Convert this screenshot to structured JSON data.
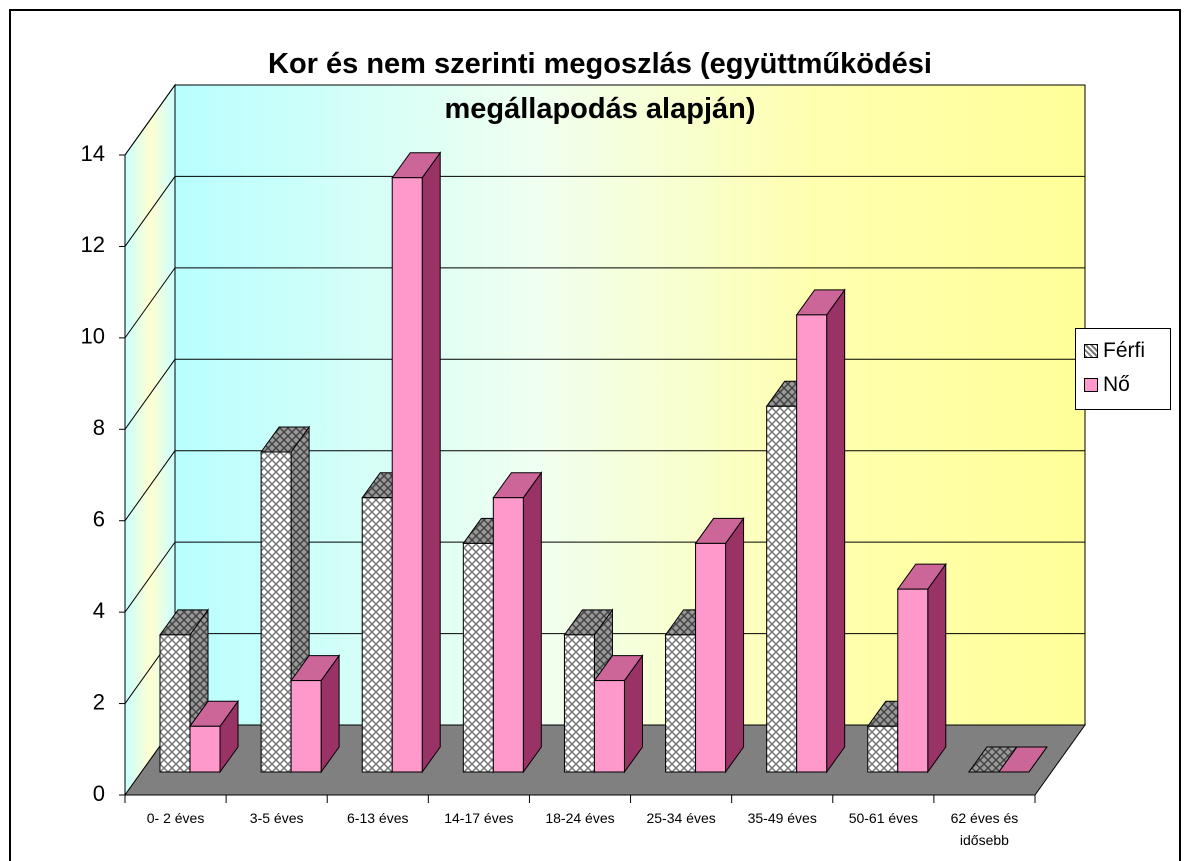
{
  "chart_data": {
    "type": "bar3d",
    "title": "Kor és nem szerinti megoszlás (együttműködési megállapodás alapján)",
    "categories": [
      "0- 2 éves",
      "3-5 éves",
      "6-13 éves",
      "14-17 éves",
      "18-24 éves",
      "25-34 éves",
      "35-49 éves",
      "50-61 éves",
      "62 éves és idősebb"
    ],
    "series": [
      {
        "name": "Férfi",
        "color": "#c0c0c0",
        "values": [
          3,
          7,
          6,
          5,
          3,
          3,
          8,
          1,
          0
        ]
      },
      {
        "name": "Nő",
        "color": "#ff99cc",
        "values": [
          1,
          2,
          13,
          6,
          2,
          5,
          10,
          4,
          0
        ]
      }
    ],
    "ylim": [
      0,
      14
    ],
    "yticks": [
      0,
      2,
      4,
      6,
      8,
      10,
      12,
      14
    ],
    "grid": true,
    "legend": "right"
  }
}
